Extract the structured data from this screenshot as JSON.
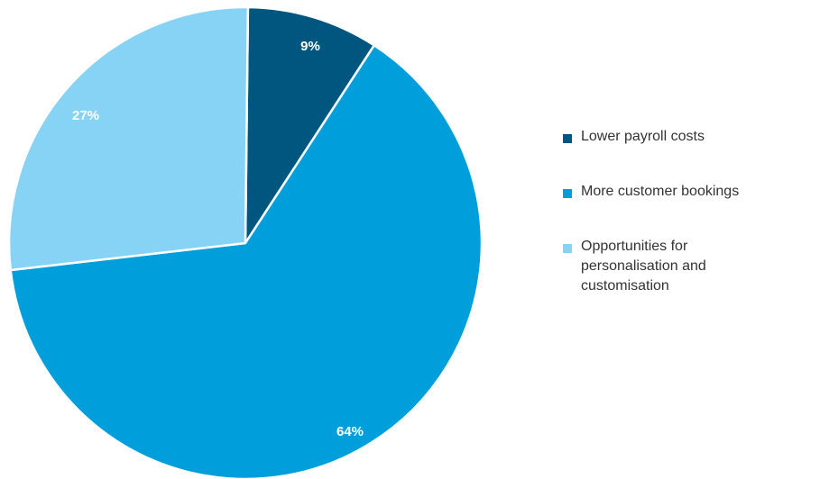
{
  "chart_data": {
    "type": "pie",
    "title": "",
    "start": "top",
    "direction": "clockwise",
    "slices": [
      {
        "label": "Lower payroll costs",
        "value": 9,
        "value_label": "9%",
        "color": "#00567e"
      },
      {
        "label": "More customer bookings",
        "value": 64,
        "value_label": "64%",
        "color": "#009fdb"
      },
      {
        "label": "Opportunities for\npersonalisation and\ncustomisation",
        "value": 27,
        "value_label": "27%",
        "color": "#87d3f5"
      }
    ],
    "legend_position": "right"
  }
}
